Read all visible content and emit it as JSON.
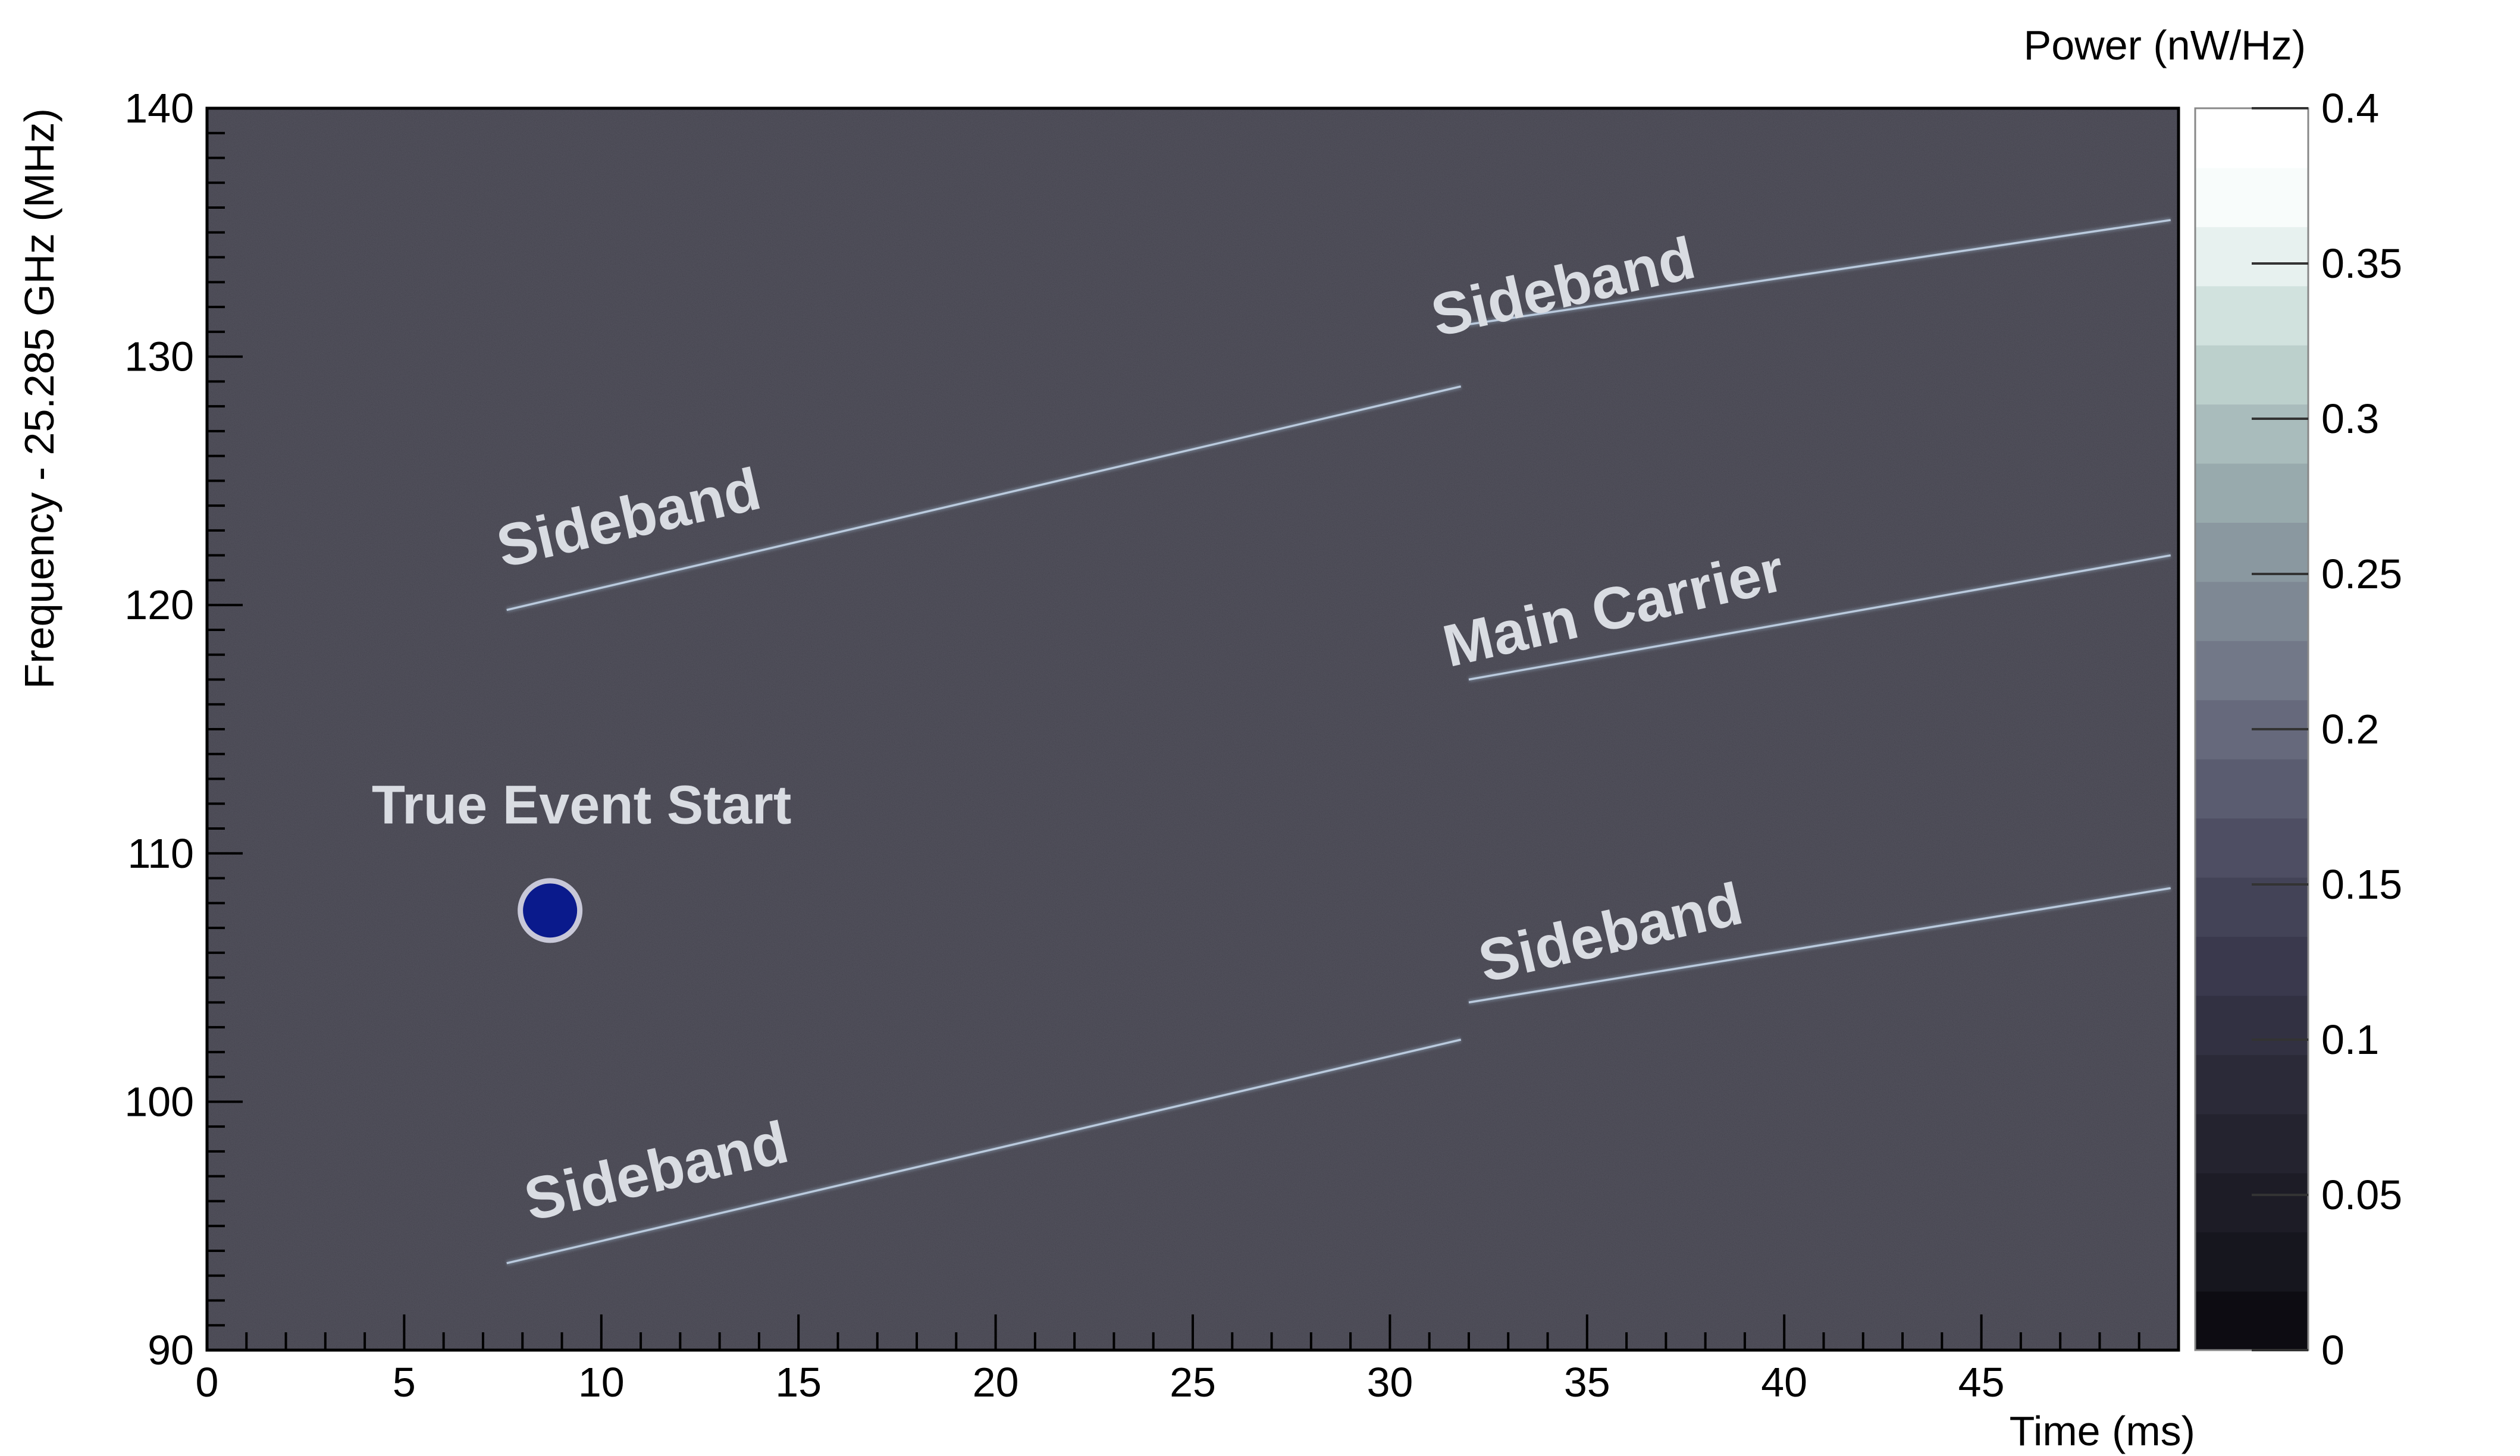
{
  "chart_data": {
    "type": "heatmap",
    "title": "",
    "xlabel": "Time (ms)",
    "ylabel": "Frequency - 25.285 GHz (MHz)",
    "xlim": [
      0,
      50
    ],
    "ylim": [
      90,
      140
    ],
    "x_ticks": [
      0,
      5,
      10,
      15,
      20,
      25,
      30,
      35,
      40,
      45
    ],
    "y_ticks": [
      90,
      100,
      110,
      120,
      130,
      140
    ],
    "colorbar": {
      "label": "Power (nW/Hz)",
      "range": [
        0,
        0.4
      ],
      "ticks": [
        "0",
        "0.05",
        "0.1",
        "0.15",
        "0.2",
        "0.25",
        "0.3",
        "0.35",
        "0.4"
      ],
      "colors": [
        "#0d0c12",
        "#16161e",
        "#1d1c26",
        "#24232f",
        "#2b2a38",
        "#323142",
        "#3a394d",
        "#434357",
        "#4e4e63",
        "#5a5c70",
        "#66697c",
        "#727888",
        "#7e8894",
        "#8a98a0",
        "#98aaad",
        "#a9bcbc",
        "#bcd0cc",
        "#d1e2de",
        "#e7f1ef",
        "#f8fcfb",
        "#ffffff"
      ]
    },
    "background_color": "#2e2d3b",
    "traces": [
      {
        "name": "Sideband",
        "x": [
          7.6,
          31.8
        ],
        "y": [
          119.8,
          128.8
        ]
      },
      {
        "name": "Sideband",
        "x": [
          32.0,
          49.8
        ],
        "y": [
          131.3,
          135.5
        ]
      },
      {
        "name": "Main Carrier",
        "x": [
          32.0,
          49.8
        ],
        "y": [
          117.0,
          122.0
        ]
      },
      {
        "name": "Sideband",
        "x": [
          32.0,
          49.8
        ],
        "y": [
          104.0,
          108.6
        ]
      },
      {
        "name": "Sideband",
        "x": [
          7.6,
          31.8
        ],
        "y": [
          93.5,
          102.5
        ]
      }
    ],
    "annotations": [
      {
        "text": "Sideband",
        "x": 7.5,
        "y": 121.5,
        "angle": -13
      },
      {
        "text": "Sideband",
        "x": 31.2,
        "y": 130.8,
        "angle": -13
      },
      {
        "text": "Main Carrier",
        "x": 31.5,
        "y": 117.5,
        "angle": -13
      },
      {
        "text": "Sideband",
        "x": 32.4,
        "y": 104.8,
        "angle": -13
      },
      {
        "text": "Sideband",
        "x": 8.2,
        "y": 95.2,
        "angle": -13
      },
      {
        "text": "True Event Start",
        "x": 9.5,
        "y": 111.2,
        "angle": 0
      }
    ],
    "event_start": {
      "label": "True Event Start",
      "x": 8.7,
      "y": 107.7,
      "color": "#0a1a8c"
    }
  }
}
